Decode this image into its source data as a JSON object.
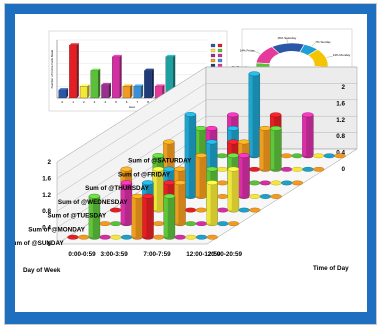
{
  "colors": {
    "frame": "#1e6fc0"
  },
  "chart_data": [
    {
      "type": "bar",
      "title": "",
      "xlabel": "Hour",
      "ylabel": "Number of Crime Calls Made",
      "categories": [
        "0",
        "1",
        "2",
        "3",
        "4",
        "5",
        "6",
        "7",
        "8",
        "9",
        "10",
        "11",
        "12",
        "13"
      ],
      "values": [
        0.15,
        1.0,
        0.22,
        0.52,
        0.25,
        0.78,
        0.22,
        0.22,
        0.52,
        0.22,
        0.78,
        0.22,
        0.22,
        0.22
      ],
      "ylim": [
        0,
        1.1
      ],
      "grid": true,
      "legend": "right"
    },
    {
      "type": "pie",
      "variant": "doughnut",
      "slices": [
        {
          "label": "7% Sunday",
          "value": 7
        },
        {
          "label": "14% Monday",
          "value": 14
        },
        {
          "label": "7% Tuesday",
          "value": 7
        },
        {
          "label": "36% Wednesday",
          "value": 36
        },
        {
          "label": "7% Thursday",
          "value": 7
        },
        {
          "label": "14% Friday",
          "value": 14
        },
        {
          "label": "15% Saturday",
          "value": 15
        }
      ]
    },
    {
      "type": "bar",
      "variant": "3d-column",
      "xlabel": "Time of Day",
      "ylabel": "Day of Week",
      "z_ticks": [
        "2",
        "1.6",
        "1.2",
        "0.8",
        "0.4",
        "0"
      ],
      "time_ticks": [
        "0:00-0:59",
        "3:00-3:59",
        "7:00-7:59",
        "12:00-12:59",
        "20:00-20:59"
      ],
      "series": [
        {
          "name": "Sum of @SUNDAY",
          "values": [
            0,
            0,
            1,
            0,
            0,
            0,
            1,
            1,
            0,
            1,
            0,
            0,
            0,
            0
          ]
        },
        {
          "name": "Sum of @MONDAY",
          "values": [
            0,
            0,
            0,
            1,
            0,
            1,
            0,
            1,
            1,
            0,
            0,
            1,
            0,
            0
          ]
        },
        {
          "name": "Sum of @TUESDAY",
          "values": [
            0,
            1,
            0,
            0,
            1,
            1,
            1,
            0,
            0,
            1,
            0,
            1,
            0,
            0
          ]
        },
        {
          "name": "Sum of @WEDNESDAY",
          "values": [
            0,
            0,
            1,
            0,
            0,
            2,
            1,
            0,
            0,
            1,
            1,
            0,
            0,
            0
          ]
        },
        {
          "name": "Sum of @THURSDAY",
          "values": [
            0,
            1,
            0,
            0,
            0,
            1,
            0,
            1,
            1,
            0,
            0,
            0,
            0,
            0
          ]
        },
        {
          "name": "Sum of @FRIDAY",
          "values": [
            0,
            0,
            1,
            1,
            0,
            1,
            0,
            0,
            1,
            1,
            0,
            0,
            0,
            0
          ]
        },
        {
          "name": "Sum of @SATURDAY",
          "values": [
            0,
            0,
            0,
            1,
            0,
            2,
            0,
            1,
            0,
            0,
            1,
            0,
            0,
            0
          ]
        }
      ]
    }
  ]
}
